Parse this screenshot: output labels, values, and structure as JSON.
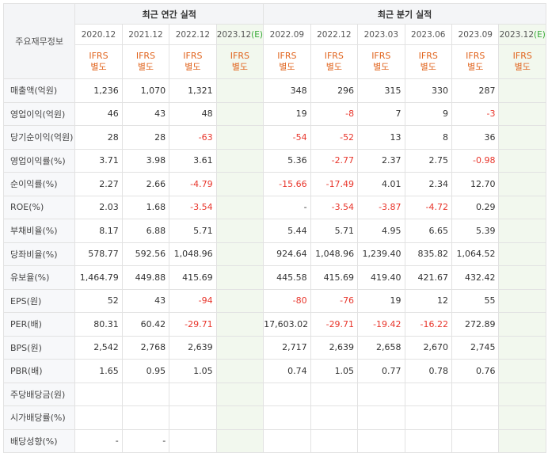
{
  "header": {
    "label": "주요재무정보",
    "annual_group": "최근 연간 실적",
    "quarter_group": "최근 분기 실적",
    "periods": [
      "2020.12",
      "2021.12",
      "2022.12",
      "2023.12",
      "2022.09",
      "2022.12",
      "2023.03",
      "2023.06",
      "2023.09",
      "2023.12"
    ],
    "estimate_marker": "(E)",
    "ifrs_line1": "IFRS",
    "ifrs_line2": "별도"
  },
  "rows": [
    {
      "label": "매출액(억원)",
      "values": [
        "1,236",
        "1,070",
        "1,321",
        "",
        "348",
        "296",
        "315",
        "330",
        "287",
        ""
      ]
    },
    {
      "label": "영업이익(억원)",
      "values": [
        "46",
        "43",
        "48",
        "",
        "19",
        "-8",
        "7",
        "9",
        "-3",
        ""
      ]
    },
    {
      "label": "당기순이익(억원)",
      "values": [
        "28",
        "28",
        "-63",
        "",
        "-54",
        "-52",
        "13",
        "8",
        "36",
        ""
      ]
    },
    {
      "label": "영업이익률(%)",
      "values": [
        "3.71",
        "3.98",
        "3.61",
        "",
        "5.36",
        "-2.77",
        "2.37",
        "2.75",
        "-0.98",
        ""
      ]
    },
    {
      "label": "순이익률(%)",
      "values": [
        "2.27",
        "2.66",
        "-4.79",
        "",
        "-15.66",
        "-17.49",
        "4.01",
        "2.34",
        "12.70",
        ""
      ]
    },
    {
      "label": "ROE(%)",
      "values": [
        "2.03",
        "1.68",
        "-3.54",
        "",
        "-",
        "-3.54",
        "-3.87",
        "-4.72",
        "0.29",
        ""
      ]
    },
    {
      "label": "부채비율(%)",
      "values": [
        "8.17",
        "6.88",
        "5.71",
        "",
        "5.44",
        "5.71",
        "4.95",
        "6.65",
        "5.39",
        ""
      ]
    },
    {
      "label": "당좌비율(%)",
      "values": [
        "578.77",
        "592.56",
        "1,048.96",
        "",
        "924.64",
        "1,048.96",
        "1,239.40",
        "835.82",
        "1,064.52",
        ""
      ]
    },
    {
      "label": "유보율(%)",
      "values": [
        "1,464.79",
        "449.88",
        "415.69",
        "",
        "445.58",
        "415.69",
        "419.40",
        "421.67",
        "432.42",
        ""
      ]
    },
    {
      "label": "EPS(원)",
      "values": [
        "52",
        "43",
        "-94",
        "",
        "-80",
        "-76",
        "19",
        "12",
        "55",
        ""
      ]
    },
    {
      "label": "PER(배)",
      "values": [
        "80.31",
        "60.42",
        "-29.71",
        "",
        "17,603.02",
        "-29.71",
        "-19.42",
        "-16.22",
        "272.89",
        ""
      ]
    },
    {
      "label": "BPS(원)",
      "values": [
        "2,542",
        "2,768",
        "2,639",
        "",
        "2,717",
        "2,639",
        "2,658",
        "2,670",
        "2,745",
        ""
      ]
    },
    {
      "label": "PBR(배)",
      "values": [
        "1.65",
        "0.95",
        "1.05",
        "",
        "0.74",
        "1.05",
        "0.77",
        "0.78",
        "0.76",
        ""
      ]
    },
    {
      "label": "주당배당금(원)",
      "values": [
        "",
        "",
        "",
        "",
        "",
        "",
        "",
        "",
        "",
        ""
      ]
    },
    {
      "label": "시가배당률(%)",
      "values": [
        "",
        "",
        "",
        "",
        "",
        "",
        "",
        "",
        "",
        ""
      ]
    },
    {
      "label": "배당성향(%)",
      "values": [
        "-",
        "-",
        "",
        "",
        "",
        "",
        "",
        "",
        "",
        ""
      ]
    }
  ],
  "colors": {
    "negative": "#e8352b",
    "ifrs": "#e1651f",
    "estimate": "#35a935",
    "estimate_bg": "#f2f8ee"
  }
}
